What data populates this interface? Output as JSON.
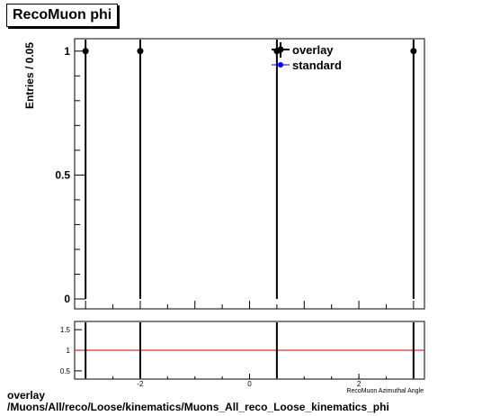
{
  "title": "RecoMuon phi",
  "footer": {
    "line1": "overlay",
    "line2": "/Muons/All/reco/Loose/kinematics/Muons_All_reco_Loose_kinematics_phi"
  },
  "chart_data": [
    {
      "type": "scatter",
      "ylabel": "Entries / 0.05",
      "xlabel": "",
      "xlim": [
        -3.2,
        3.2
      ],
      "ylim": [
        0,
        1.05
      ],
      "yticks": [
        0,
        0.5,
        1
      ],
      "ytick_labels": [
        "0",
        "0.5",
        "1"
      ],
      "legend_position": "top-right",
      "series": [
        {
          "name": "overlay",
          "color": "#000000",
          "x": [
            -3.0,
            -2.0,
            0.5,
            3.0
          ],
          "y": [
            1,
            1,
            1,
            1
          ]
        },
        {
          "name": "standard",
          "color": "#0000ff",
          "x": [],
          "y": []
        }
      ]
    },
    {
      "type": "line",
      "xlabel": "RecoMuon Azimuthal Angle",
      "xlim": [
        -3.2,
        3.2
      ],
      "ylim": [
        0.3,
        1.7
      ],
      "xticks": [
        -2,
        0,
        2
      ],
      "xtick_labels": [
        "-2",
        "0",
        "2"
      ],
      "yticks": [
        0.5,
        1,
        1.5
      ],
      "ytick_labels": [
        "0.5",
        "1",
        "1.5"
      ],
      "reference_line": {
        "y": 1,
        "color": "#cc0000"
      },
      "points": {
        "x": [
          -3.0,
          -2.0,
          0.5,
          3.0
        ],
        "y": [
          1,
          1,
          1,
          1
        ]
      }
    }
  ]
}
